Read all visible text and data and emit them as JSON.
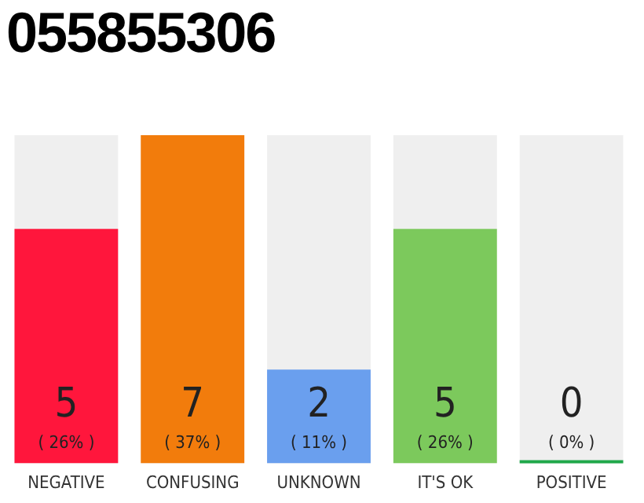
{
  "chart_data": {
    "type": "bar",
    "title": "055855306",
    "categories": [
      "NEGATIVE",
      "CONFUSING",
      "UNKNOWN",
      "IT'S OK",
      "POSITIVE"
    ],
    "values": [
      5,
      7,
      2,
      5,
      0
    ],
    "colors": [
      "#ff163c",
      "#f27c0c",
      "#6a9fee",
      "#7cc95c",
      "#1fa84a"
    ],
    "value_labels": [
      "5\n( 26% )",
      "7\n( 37% )",
      "2\n( 11% )",
      "5\n( 26% )",
      "0\n( 0% )"
    ],
    "ylim": [
      0,
      7
    ],
    "tick_labels": "x",
    "grid": false,
    "legend": false
  }
}
